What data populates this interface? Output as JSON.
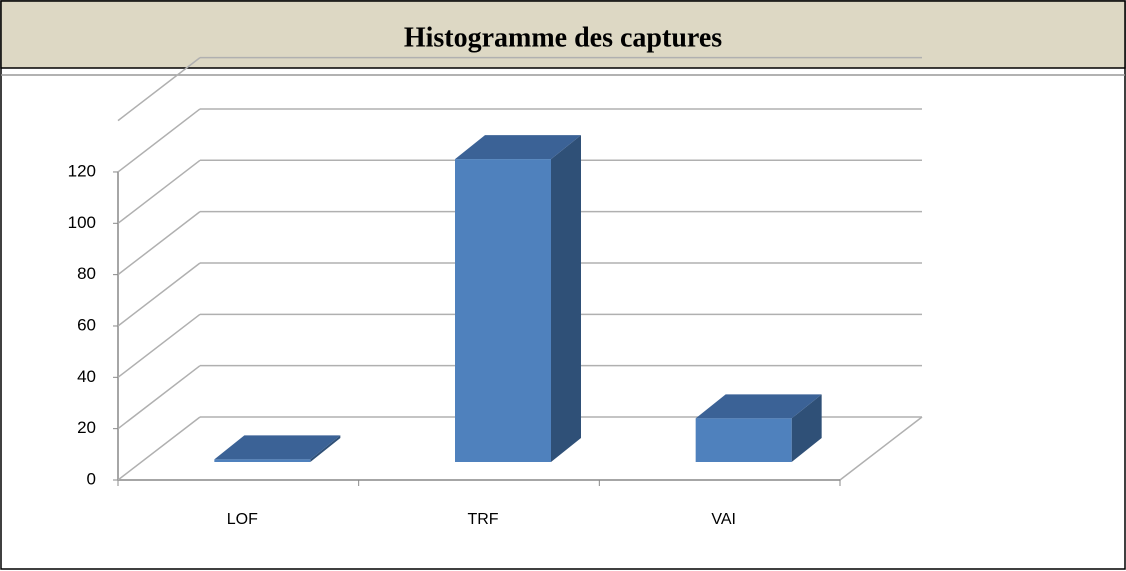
{
  "chart_data": {
    "type": "bar3d",
    "title": "Histogramme des captures",
    "categories": [
      "LOF",
      "TRF",
      "VAI"
    ],
    "values": [
      1,
      118,
      17
    ],
    "color": "#4f81bd",
    "ylim": [
      0,
      140
    ],
    "yticks": [
      0,
      20,
      40,
      60,
      80,
      100,
      120
    ],
    "grid": true
  }
}
